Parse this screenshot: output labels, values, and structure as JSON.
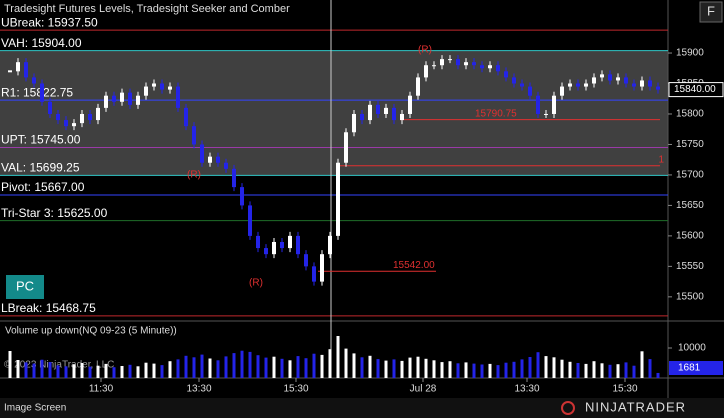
{
  "header": {
    "title": "Tradesight Futures Levels, Tradesight Seeker and Comber",
    "button": "F"
  },
  "chart_data": {
    "type": "candlestick",
    "close": [
      15870,
      15885,
      15860,
      15850,
      15820,
      15800,
      15790,
      15780,
      15785,
      15800,
      15790,
      15810,
      15830,
      15820,
      15835,
      15815,
      15830,
      15845,
      15850,
      15840,
      15845,
      15810,
      15780,
      15750,
      15720,
      15730,
      15720,
      15710,
      15680,
      15650,
      15600,
      15580,
      15570,
      15590,
      15580,
      15600,
      15570,
      15550,
      15525,
      15570,
      15600,
      15720,
      15770,
      15800,
      15790,
      15815,
      15800,
      15810,
      15790,
      15800,
      15830,
      15860,
      15880,
      15880,
      15890,
      15890,
      15880,
      15885,
      15880,
      15875,
      15880,
      15870,
      15860,
      15850,
      15845,
      15830,
      15800,
      15800,
      15830,
      15845,
      15850,
      15845,
      15850,
      15860,
      15865,
      15855,
      15860,
      15850,
      15845,
      15855,
      15845,
      15840
    ],
    "ylim": [
      15462,
      15987
    ],
    "yticks": [
      15500,
      15550,
      15600,
      15650,
      15700,
      15750,
      15800,
      15850,
      15900
    ],
    "levels": [
      {
        "label": "UBreak: 15937.50",
        "value": 15937.5,
        "color": "#c0282c"
      },
      {
        "label": "VAH: 15904.00",
        "value": 15904,
        "color": "#33c8c8"
      },
      {
        "label": "R1: 15822.75",
        "value": 15822.75,
        "color": "#3344ff"
      },
      {
        "label": "UPT: 15745.00",
        "value": 15745,
        "color": "#9a3aa8"
      },
      {
        "label": "VAL: 15699.25",
        "value": 15699.25,
        "color": "#33c8c8"
      },
      {
        "label": "Pivot: 15667.00",
        "value": 15667,
        "color": "#3344ff"
      },
      {
        "label": "Tri-Star 3: 15625.00",
        "value": 15625,
        "color": "#1f6e2a"
      },
      {
        "label": "LBreak: 15468.75",
        "value": 15468.75,
        "color": "#c0282c"
      }
    ],
    "markers": [
      {
        "label": "15790.75",
        "value": 15790.75
      },
      {
        "label": "15542.00",
        "value": 15542
      },
      {
        "label": "1",
        "value": 15715
      }
    ],
    "signals": [
      "(R)",
      "(R)",
      "(R)"
    ],
    "last_price": {
      "value": 15840,
      "label": "15840.00"
    },
    "xticks": [
      "11:30",
      "13:30",
      "15:30",
      "Jul 28",
      "13:30",
      "15:30"
    ],
    "volume": {
      "title": "Volume up down(NQ 09-23 (5 Minute))",
      "ylim": [
        0,
        18000
      ],
      "yticks": [
        10000
      ],
      "values": [
        9000,
        6000,
        5200,
        4800,
        6100,
        5300,
        4200,
        3900,
        4500,
        5000,
        3800,
        4100,
        4700,
        3600,
        4000,
        4400,
        3900,
        5100,
        4800,
        4300,
        5600,
        6200,
        7400,
        6900,
        7800,
        6500,
        5900,
        7200,
        8300,
        9100,
        8700,
        7600,
        6800,
        7100,
        6400,
        5900,
        7300,
        6600,
        8100,
        7700,
        9600,
        14000,
        9800,
        8200,
        6900,
        7400,
        6300,
        5800,
        6200,
        5700,
        6800,
        7100,
        6400,
        5900,
        5300,
        5600,
        4900,
        5200,
        4800,
        4500,
        4700,
        4300,
        5100,
        5400,
        6200,
        7000,
        8600,
        7300,
        6900,
        6100,
        5400,
        5000,
        4700,
        5600,
        4900,
        4400,
        4600,
        5200,
        4100,
        8900,
        6300,
        1681
      ]
    }
  },
  "pc_button": "PC",
  "copyright": "© 2023 NinjaTrader, LLC",
  "status": "Image Screen",
  "logo": "NINJATRADER"
}
